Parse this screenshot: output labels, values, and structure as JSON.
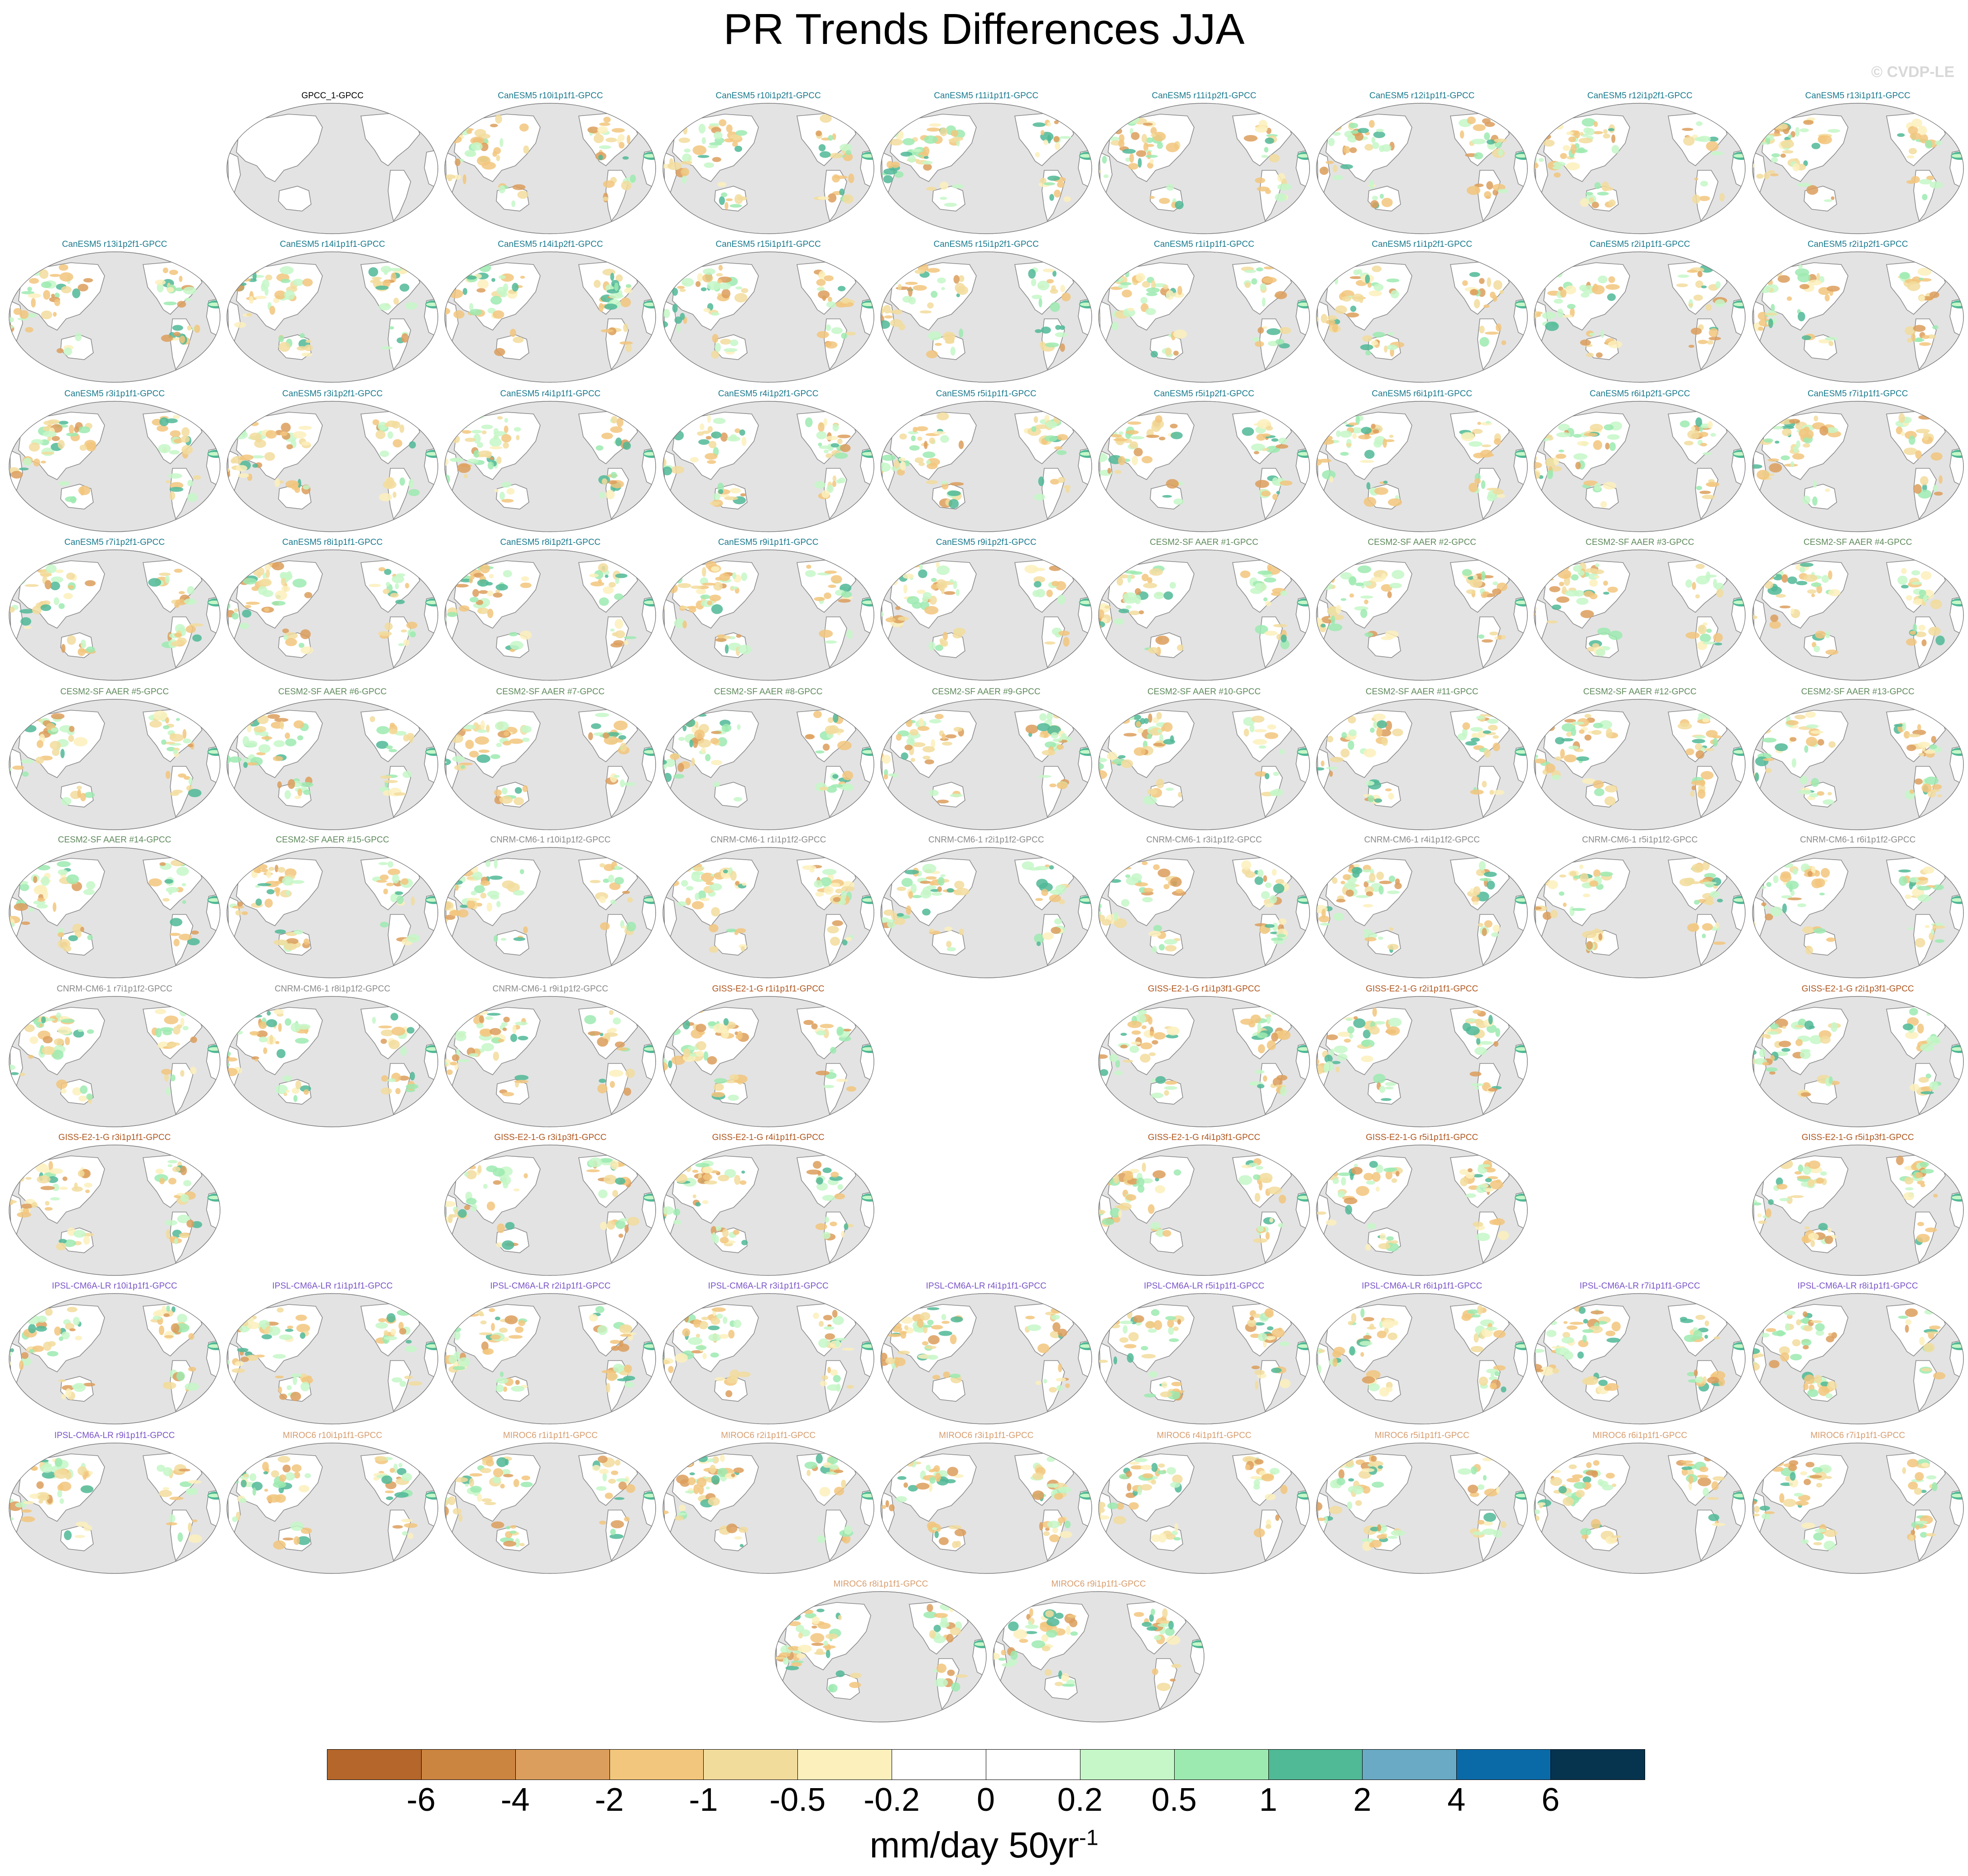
{
  "title": "PR Trends Differences JJA",
  "copyright": "© CVDP-LE",
  "colors": {
    "CanESM5": "#1a7a8e",
    "CESM2": "#5f8a5c",
    "CNRM": "#8a8a8a",
    "GISS": "#b0561e",
    "IPSL": "#7a55c8",
    "MIROC": "#d79d6e",
    "obs": "#000000",
    "land": "#ffffff",
    "ocean": "#e3e3e3",
    "coast": "#8c8c8c"
  },
  "panel_rows": [
    [
      {
        "label": "",
        "group": ""
      },
      {
        "label": "GPCC_1-GPCC",
        "group": "obs"
      },
      {
        "label": "CanESM5 r10i1p1f1-GPCC",
        "group": "CanESM5"
      },
      {
        "label": "CanESM5 r10i1p2f1-GPCC",
        "group": "CanESM5"
      },
      {
        "label": "CanESM5 r11i1p1f1-GPCC",
        "group": "CanESM5"
      },
      {
        "label": "CanESM5 r11i1p2f1-GPCC",
        "group": "CanESM5"
      },
      {
        "label": "CanESM5 r12i1p1f1-GPCC",
        "group": "CanESM5"
      },
      {
        "label": "CanESM5 r12i1p2f1-GPCC",
        "group": "CanESM5"
      },
      {
        "label": "CanESM5 r13i1p1f1-GPCC",
        "group": "CanESM5"
      }
    ],
    [
      {
        "label": "CanESM5 r13i1p2f1-GPCC",
        "group": "CanESM5"
      },
      {
        "label": "CanESM5 r14i1p1f1-GPCC",
        "group": "CanESM5"
      },
      {
        "label": "CanESM5 r14i1p2f1-GPCC",
        "group": "CanESM5"
      },
      {
        "label": "CanESM5 r15i1p1f1-GPCC",
        "group": "CanESM5"
      },
      {
        "label": "CanESM5 r15i1p2f1-GPCC",
        "group": "CanESM5"
      },
      {
        "label": "CanESM5 r1i1p1f1-GPCC",
        "group": "CanESM5"
      },
      {
        "label": "CanESM5 r1i1p2f1-GPCC",
        "group": "CanESM5"
      },
      {
        "label": "CanESM5 r2i1p1f1-GPCC",
        "group": "CanESM5"
      },
      {
        "label": "CanESM5 r2i1p2f1-GPCC",
        "group": "CanESM5"
      }
    ],
    [
      {
        "label": "CanESM5 r3i1p1f1-GPCC",
        "group": "CanESM5"
      },
      {
        "label": "CanESM5 r3i1p2f1-GPCC",
        "group": "CanESM5"
      },
      {
        "label": "CanESM5 r4i1p1f1-GPCC",
        "group": "CanESM5"
      },
      {
        "label": "CanESM5 r4i1p2f1-GPCC",
        "group": "CanESM5"
      },
      {
        "label": "CanESM5 r5i1p1f1-GPCC",
        "group": "CanESM5"
      },
      {
        "label": "CanESM5 r5i1p2f1-GPCC",
        "group": "CanESM5"
      },
      {
        "label": "CanESM5 r6i1p1f1-GPCC",
        "group": "CanESM5"
      },
      {
        "label": "CanESM5 r6i1p2f1-GPCC",
        "group": "CanESM5"
      },
      {
        "label": "CanESM5 r7i1p1f1-GPCC",
        "group": "CanESM5"
      }
    ],
    [
      {
        "label": "CanESM5 r7i1p2f1-GPCC",
        "group": "CanESM5"
      },
      {
        "label": "CanESM5 r8i1p1f1-GPCC",
        "group": "CanESM5"
      },
      {
        "label": "CanESM5 r8i1p2f1-GPCC",
        "group": "CanESM5"
      },
      {
        "label": "CanESM5 r9i1p1f1-GPCC",
        "group": "CanESM5"
      },
      {
        "label": "CanESM5 r9i1p2f1-GPCC",
        "group": "CanESM5"
      },
      {
        "label": "CESM2-SF AAER #1-GPCC",
        "group": "CESM2"
      },
      {
        "label": "CESM2-SF AAER #2-GPCC",
        "group": "CESM2"
      },
      {
        "label": "CESM2-SF AAER #3-GPCC",
        "group": "CESM2"
      },
      {
        "label": "CESM2-SF AAER #4-GPCC",
        "group": "CESM2"
      }
    ],
    [
      {
        "label": "CESM2-SF AAER #5-GPCC",
        "group": "CESM2"
      },
      {
        "label": "CESM2-SF AAER #6-GPCC",
        "group": "CESM2"
      },
      {
        "label": "CESM2-SF AAER #7-GPCC",
        "group": "CESM2"
      },
      {
        "label": "CESM2-SF AAER #8-GPCC",
        "group": "CESM2"
      },
      {
        "label": "CESM2-SF AAER #9-GPCC",
        "group": "CESM2"
      },
      {
        "label": "CESM2-SF AAER #10-GPCC",
        "group": "CESM2"
      },
      {
        "label": "CESM2-SF AAER #11-GPCC",
        "group": "CESM2"
      },
      {
        "label": "CESM2-SF AAER #12-GPCC",
        "group": "CESM2"
      },
      {
        "label": "CESM2-SF AAER #13-GPCC",
        "group": "CESM2"
      }
    ],
    [
      {
        "label": "CESM2-SF AAER #14-GPCC",
        "group": "CESM2"
      },
      {
        "label": "CESM2-SF AAER #15-GPCC",
        "group": "CESM2"
      },
      {
        "label": "CNRM-CM6-1 r10i1p1f2-GPCC",
        "group": "CNRM"
      },
      {
        "label": "CNRM-CM6-1 r1i1p1f2-GPCC",
        "group": "CNRM"
      },
      {
        "label": "CNRM-CM6-1 r2i1p1f2-GPCC",
        "group": "CNRM"
      },
      {
        "label": "CNRM-CM6-1 r3i1p1f2-GPCC",
        "group": "CNRM"
      },
      {
        "label": "CNRM-CM6-1 r4i1p1f2-GPCC",
        "group": "CNRM"
      },
      {
        "label": "CNRM-CM6-1 r5i1p1f2-GPCC",
        "group": "CNRM"
      },
      {
        "label": "CNRM-CM6-1 r6i1p1f2-GPCC",
        "group": "CNRM"
      }
    ],
    [
      {
        "label": "CNRM-CM6-1 r7i1p1f2-GPCC",
        "group": "CNRM"
      },
      {
        "label": "CNRM-CM6-1 r8i1p1f2-GPCC",
        "group": "CNRM"
      },
      {
        "label": "CNRM-CM6-1 r9i1p1f2-GPCC",
        "group": "CNRM"
      },
      {
        "label": "GISS-E2-1-G r1i1p1f1-GPCC",
        "group": "GISS"
      },
      {
        "label": "",
        "group": ""
      },
      {
        "label": "GISS-E2-1-G r1i1p3f1-GPCC",
        "group": "GISS"
      },
      {
        "label": "GISS-E2-1-G r2i1p1f1-GPCC",
        "group": "GISS"
      },
      {
        "label": "",
        "group": ""
      },
      {
        "label": "GISS-E2-1-G r2i1p3f1-GPCC",
        "group": "GISS"
      }
    ],
    [
      {
        "label": "GISS-E2-1-G r3i1p1f1-GPCC",
        "group": "GISS"
      },
      {
        "label": "",
        "group": ""
      },
      {
        "label": "GISS-E2-1-G r3i1p3f1-GPCC",
        "group": "GISS"
      },
      {
        "label": "GISS-E2-1-G r4i1p1f1-GPCC",
        "group": "GISS"
      },
      {
        "label": "",
        "group": ""
      },
      {
        "label": "GISS-E2-1-G r4i1p3f1-GPCC",
        "group": "GISS"
      },
      {
        "label": "GISS-E2-1-G r5i1p1f1-GPCC",
        "group": "GISS"
      },
      {
        "label": "",
        "group": ""
      },
      {
        "label": "GISS-E2-1-G r5i1p3f1-GPCC",
        "group": "GISS"
      }
    ],
    [
      {
        "label": "IPSL-CM6A-LR r10i1p1f1-GPCC",
        "group": "IPSL"
      },
      {
        "label": "IPSL-CM6A-LR r1i1p1f1-GPCC",
        "group": "IPSL"
      },
      {
        "label": "IPSL-CM6A-LR r2i1p1f1-GPCC",
        "group": "IPSL"
      },
      {
        "label": "IPSL-CM6A-LR r3i1p1f1-GPCC",
        "group": "IPSL"
      },
      {
        "label": "IPSL-CM6A-LR r4i1p1f1-GPCC",
        "group": "IPSL"
      },
      {
        "label": "IPSL-CM6A-LR r5i1p1f1-GPCC",
        "group": "IPSL"
      },
      {
        "label": "IPSL-CM6A-LR r6i1p1f1-GPCC",
        "group": "IPSL"
      },
      {
        "label": "IPSL-CM6A-LR r7i1p1f1-GPCC",
        "group": "IPSL"
      },
      {
        "label": "IPSL-CM6A-LR r8i1p1f1-GPCC",
        "group": "IPSL"
      }
    ],
    [
      {
        "label": "IPSL-CM6A-LR r9i1p1f1-GPCC",
        "group": "IPSL"
      },
      {
        "label": "MIROC6 r10i1p1f1-GPCC",
        "group": "MIROC"
      },
      {
        "label": "MIROC6 r1i1p1f1-GPCC",
        "group": "MIROC"
      },
      {
        "label": "MIROC6 r2i1p1f1-GPCC",
        "group": "MIROC"
      },
      {
        "label": "MIROC6 r3i1p1f1-GPCC",
        "group": "MIROC"
      },
      {
        "label": "MIROC6 r4i1p1f1-GPCC",
        "group": "MIROC"
      },
      {
        "label": "MIROC6 r5i1p1f1-GPCC",
        "group": "MIROC"
      },
      {
        "label": "MIROC6 r6i1p1f1-GPCC",
        "group": "MIROC"
      },
      {
        "label": "MIROC6 r7i1p1f1-GPCC",
        "group": "MIROC"
      }
    ],
    [
      {
        "label": "MIROC6 r8i1p1f1-GPCC",
        "group": "MIROC"
      },
      {
        "label": "MIROC6 r9i1p1f1-GPCC",
        "group": "MIROC"
      }
    ]
  ],
  "colorbar": {
    "colors": [
      "#b5662a",
      "#cc8441",
      "#dc9e5c",
      "#f2c67c",
      "#f2dc9c",
      "#fcf0bc",
      "#ffffff",
      "#ffffff",
      "#c6f7c8",
      "#9ceab0",
      "#50b996",
      "#6aaac4",
      "#0a6aa8",
      "#06344f"
    ],
    "ticks": [
      "-6",
      "-4",
      "-2",
      "-1",
      "-0.5",
      "-0.2",
      "0",
      "0.2",
      "0.5",
      "1",
      "2",
      "4",
      "6"
    ],
    "units_main": "mm/day 50yr",
    "units_sup": "-1"
  }
}
